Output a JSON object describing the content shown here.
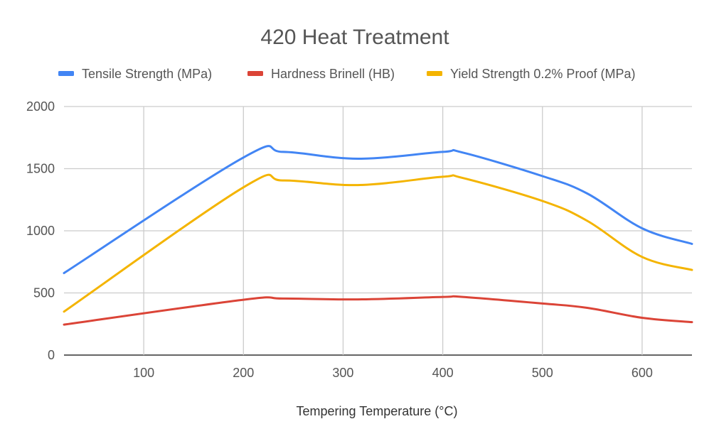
{
  "chart_data": {
    "type": "line",
    "title": "420 Heat Treatment",
    "xlabel": "Tempering Temperature (°C)",
    "ylabel": "",
    "xlim": [
      20,
      650
    ],
    "ylim": [
      0,
      2000
    ],
    "x_ticks": [
      100,
      200,
      300,
      400,
      500,
      600
    ],
    "y_ticks": [
      0,
      500,
      1000,
      1500,
      2000
    ],
    "grid": true,
    "legend_position": "top",
    "smooth": true,
    "x": [
      20,
      200,
      240,
      315,
      400,
      420,
      500,
      545,
      600,
      650
    ],
    "series": [
      {
        "name": "Tensile Strength (MPa)",
        "color": "#4285f4",
        "values": [
          660,
          1590,
          1635,
          1580,
          1635,
          1630,
          1440,
          1300,
          1020,
          895
        ]
      },
      {
        "name": "Hardness Brinell (HB)",
        "color": "#db4437",
        "values": [
          245,
          445,
          455,
          448,
          468,
          468,
          415,
          380,
          300,
          265
        ]
      },
      {
        "name": "Yield Strength 0.2% Proof (MPa)",
        "color": "#f4b400",
        "values": [
          350,
          1350,
          1405,
          1368,
          1435,
          1425,
          1240,
          1080,
          790,
          685
        ]
      }
    ]
  }
}
